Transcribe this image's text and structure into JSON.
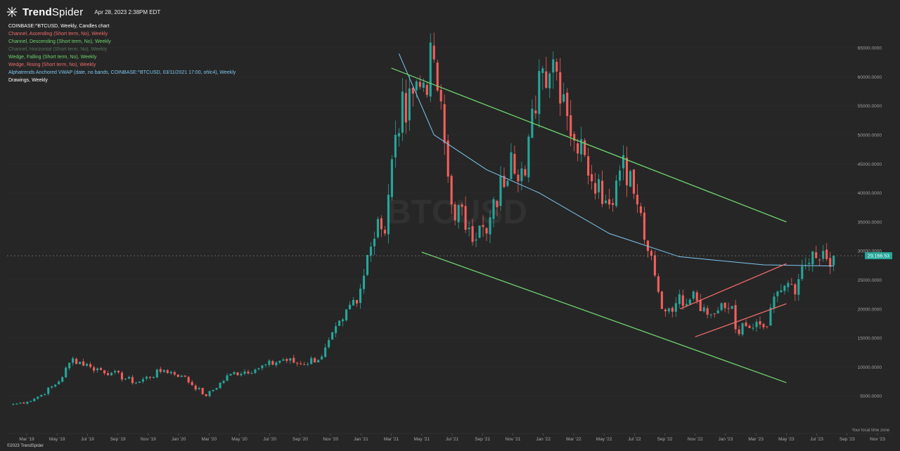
{
  "header": {
    "brand_bold": "Trend",
    "brand_light": "Spider",
    "datetime": "Apr 28, 2023 2:38PM EDT"
  },
  "legend": {
    "items": [
      {
        "text": "COINBASE:^BTCUSD, Weekly, Candles chart",
        "color": "#ffffff"
      },
      {
        "text": "Channel, Ascending (Short term, No), Weekly",
        "color": "#f06b6b"
      },
      {
        "text": "Channel, Descending (Short term, No), Weekly",
        "color": "#6fd36f"
      },
      {
        "text": "Channel, Horizontal (Short term, No), Weekly",
        "color": "#56705a"
      },
      {
        "text": "Wedge, Falling (Short term, No), Weekly",
        "color": "#6fd36f"
      },
      {
        "text": "Wedge, Rising (Short term, No), Weekly",
        "color": "#f06b6b"
      },
      {
        "text": "Alphatrends Anchored VWAP (date, no bands, COINBASE:^BTCUSD, 03/11/2021 17:00, ohlc4), Weekly",
        "color": "#7fc7f0"
      },
      {
        "text": "Drawings, Weekly",
        "color": "#ffffff"
      }
    ]
  },
  "footer": {
    "copyright": "©2023 TrendSpider",
    "timezone_note": "Your local time zone"
  },
  "colors": {
    "background": "#262626",
    "up_candle": "#26a69a",
    "down_candle": "#f25f5c",
    "descending_channel": "#6fd36f",
    "rising_wedge": "#f06b6b",
    "vwap": "#7fc7f0",
    "last_price_bg": "#26a69a"
  },
  "chart_data": {
    "type": "candlestick",
    "symbol": "COINBASE:^BTCUSD",
    "timeframe": "Weekly",
    "watermark": "BTCUSD",
    "x_ticks": [
      "Mar '19",
      "May '19",
      "Jul '19",
      "Sep '19",
      "Nov '19",
      "Jan '20",
      "Mar '20",
      "May '20",
      "Jul '20",
      "Sep '20",
      "Nov '20",
      "Jan '21",
      "Mar '21",
      "May '21",
      "Jul '21",
      "Sep '21",
      "Nov '21",
      "Jan '22",
      "Mar '22",
      "May '22",
      "Jul '22",
      "Sep '22",
      "Nov '22",
      "Jan '23",
      "Mar '23",
      "May '23",
      "Jul '23",
      "Sep '23",
      "Nov '23"
    ],
    "y_ticks": [
      "5000.0000",
      "10000.0000",
      "15000.0000",
      "20000.0000",
      "25000.0000",
      "30000.0000",
      "35000.0000",
      "40000.0000",
      "45000.0000",
      "50000.0000",
      "55000.0000",
      "60000.0000",
      "65000.0000"
    ],
    "ylim": [
      0,
      69000
    ],
    "last_price": 29166.53,
    "last_price_label": "29,166.53",
    "x_start_month": "Feb '19",
    "x_end_month": "Nov '23",
    "anchors": [
      [
        0,
        3600
      ],
      [
        4,
        4000
      ],
      [
        8,
        5200
      ],
      [
        13,
        7500
      ],
      [
        17,
        11500
      ],
      [
        22,
        10000
      ],
      [
        28,
        9000
      ],
      [
        35,
        7300
      ],
      [
        43,
        9500
      ],
      [
        48,
        8500
      ],
      [
        55,
        5000
      ],
      [
        62,
        8800
      ],
      [
        70,
        9800
      ],
      [
        77,
        11300
      ],
      [
        82,
        10500
      ],
      [
        88,
        11800
      ],
      [
        94,
        18200
      ],
      [
        99,
        23500
      ],
      [
        101,
        29300
      ],
      [
        104,
        35500
      ],
      [
        106,
        33000
      ],
      [
        109,
        50000
      ],
      [
        113,
        58000
      ],
      [
        117,
        59000
      ],
      [
        120,
        63000
      ],
      [
        125,
        38000
      ],
      [
        130,
        34000
      ],
      [
        135,
        33000
      ],
      [
        142,
        47000
      ],
      [
        146,
        43000
      ],
      [
        150,
        61000
      ],
      [
        154,
        63000
      ],
      [
        157,
        57000
      ],
      [
        160,
        49000
      ],
      [
        163,
        46500
      ],
      [
        170,
        38000
      ],
      [
        174,
        46500
      ],
      [
        178,
        38000
      ],
      [
        181,
        30000
      ],
      [
        185,
        20000
      ],
      [
        189,
        21000
      ],
      [
        194,
        23000
      ],
      [
        198,
        19000
      ],
      [
        205,
        20500
      ],
      [
        206,
        16500
      ],
      [
        210,
        16700
      ],
      [
        215,
        17000
      ],
      [
        218,
        23000
      ],
      [
        221,
        24500
      ],
      [
        223,
        22500
      ],
      [
        226,
        27500
      ],
      [
        230,
        28500
      ],
      [
        234,
        29166.53
      ]
    ],
    "vwap": [
      [
        110,
        64000
      ],
      [
        115,
        57000
      ],
      [
        120,
        50000
      ],
      [
        135,
        44000
      ],
      [
        150,
        40000
      ],
      [
        170,
        33000
      ],
      [
        190,
        29000
      ],
      [
        214,
        27600
      ],
      [
        234,
        27400
      ]
    ],
    "descending_channel": {
      "upper": [
        [
          "Mar '21",
          61500
        ],
        [
          "May '23",
          35000
        ]
      ],
      "lower": [
        [
          "May '21",
          29800
        ],
        [
          "May '23",
          7300
        ]
      ]
    },
    "rising_wedge": {
      "upper": [
        [
          "Oct '22",
          20000
        ],
        [
          "May '23",
          27800
        ]
      ],
      "lower": [
        [
          "Nov '22",
          15200
        ],
        [
          "May '23",
          20900
        ]
      ]
    }
  }
}
